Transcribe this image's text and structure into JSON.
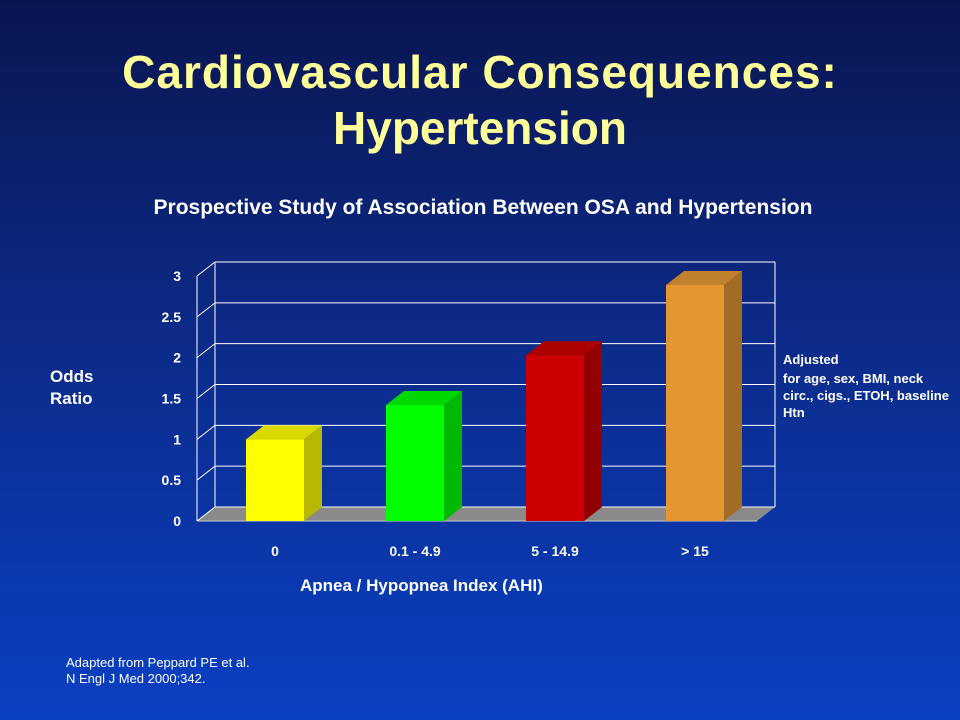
{
  "slide": {
    "title_line1": "Cardiovascular  Consequences:",
    "title_line2": "Hypertension",
    "subtitle": "Prospective Study of Association Between OSA and Hypertension",
    "source_line1": "Adapted from Peppard PE et al.",
    "source_line2": "N Engl J Med 2000;342."
  },
  "annotation": {
    "line1": "Adjusted",
    "line2": "for age, sex, BMI, neck circ., cigs., ETOH, baseline Htn"
  },
  "chart_data": {
    "type": "bar",
    "title": "Prospective Study of Association Between OSA and Hypertension",
    "xlabel": "Apnea / Hypopnea Index (AHI)",
    "ylabel": "Odds\nRatio",
    "categories": [
      "0",
      "0.1 - 4.9",
      "5 - 14.9",
      "> 15"
    ],
    "values": [
      1.0,
      1.42,
      2.03,
      2.89
    ],
    "bar_colors": [
      "#ffff00",
      "#00ff00",
      "#cc0000",
      "#e39632"
    ],
    "yticks": [
      "0",
      "0.5",
      "1",
      "1.5",
      "2",
      "2.5",
      "3"
    ],
    "ylim": [
      0,
      3
    ],
    "grid": true,
    "style": "3d"
  }
}
